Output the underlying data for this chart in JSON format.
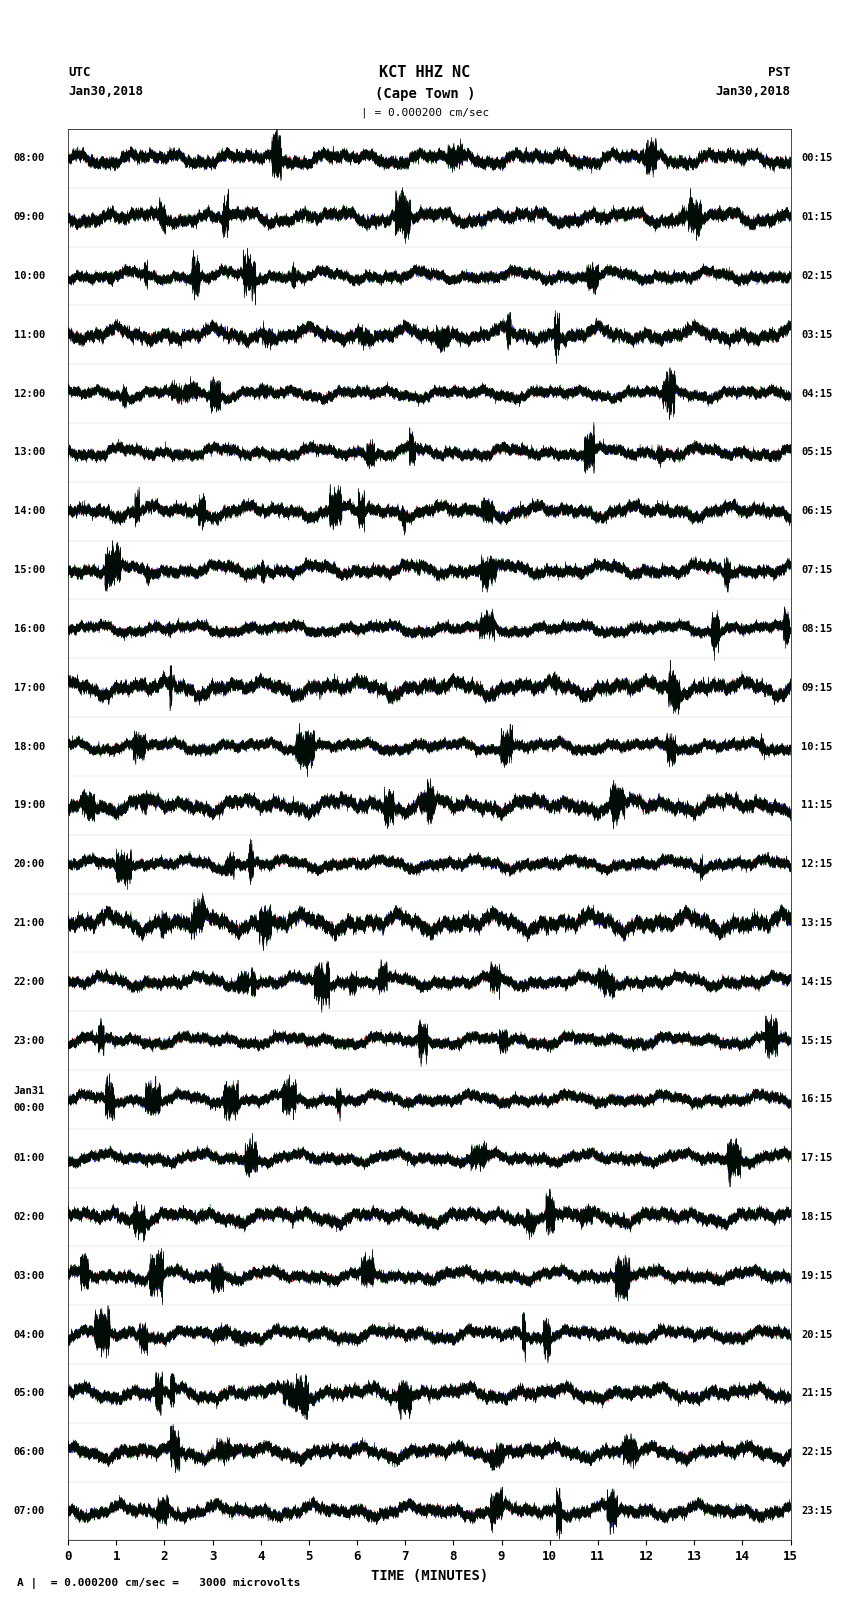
{
  "title_line1": "KCT HHZ NC",
  "title_line2": "(Cape Town )",
  "scale_label": "| = 0.000200 cm/sec",
  "bottom_label": "A |  = 0.000200 cm/sec =   3000 microvolts",
  "xlabel": "TIME (MINUTES)",
  "utc_label": "UTC",
  "utc_date": "Jan30,2018",
  "pst_label": "PST",
  "pst_date": "Jan30,2018",
  "left_times": [
    "08:00",
    "09:00",
    "10:00",
    "11:00",
    "12:00",
    "13:00",
    "14:00",
    "15:00",
    "16:00",
    "17:00",
    "18:00",
    "19:00",
    "20:00",
    "21:00",
    "22:00",
    "23:00",
    "Jan31\n00:00",
    "01:00",
    "02:00",
    "03:00",
    "04:00",
    "05:00",
    "06:00",
    "07:00"
  ],
  "right_times": [
    "00:15",
    "01:15",
    "02:15",
    "03:15",
    "04:15",
    "05:15",
    "06:15",
    "07:15",
    "08:15",
    "09:15",
    "10:15",
    "11:15",
    "12:15",
    "13:15",
    "14:15",
    "15:15",
    "16:15",
    "17:15",
    "18:15",
    "19:15",
    "20:15",
    "21:15",
    "22:15",
    "23:15"
  ],
  "n_traces": 24,
  "trace_duration_minutes": 15,
  "sample_rate": 100,
  "colors": [
    "red",
    "blue",
    "darkgreen",
    "black"
  ],
  "background_color": "white",
  "fig_width": 8.5,
  "fig_height": 16.13,
  "xmin": 0,
  "xmax": 15,
  "xticks": [
    0,
    1,
    2,
    3,
    4,
    5,
    6,
    7,
    8,
    9,
    10,
    11,
    12,
    13,
    14,
    15
  ]
}
